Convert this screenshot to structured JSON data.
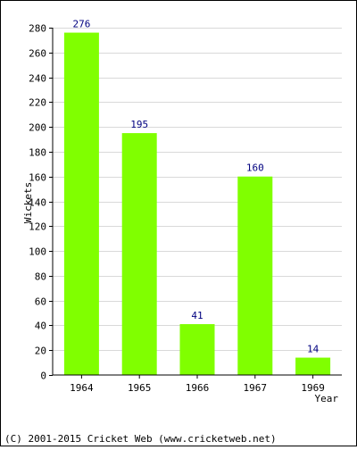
{
  "chart_data": {
    "type": "bar",
    "categories": [
      "1964",
      "1965",
      "1966",
      "1967",
      "1969"
    ],
    "values": [
      276,
      195,
      41,
      160,
      14
    ],
    "xlabel": "Year",
    "ylabel": "Wickets",
    "ylim": [
      0,
      280
    ],
    "yticks": [
      0,
      20,
      40,
      60,
      80,
      100,
      120,
      140,
      160,
      180,
      200,
      220,
      240,
      260,
      280
    ],
    "grid": true,
    "bar_color": "#80ff00",
    "value_label_color": "#000080"
  },
  "footer": {
    "copyright": "(C) 2001-2015 Cricket Web (www.cricketweb.net)"
  }
}
